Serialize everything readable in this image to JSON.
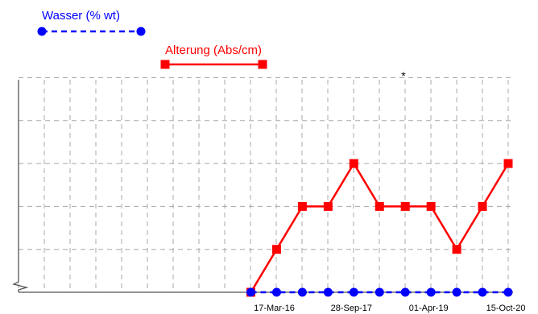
{
  "chart_data": {
    "type": "line",
    "title": "",
    "xlabel": "",
    "ylabel": "",
    "grid": true,
    "legend_placement": "top-left",
    "x_tick_labels": [
      "17-Mar-16",
      "28-Sep-17",
      "01-Apr-19",
      "15-Oct-20"
    ],
    "annotation": "*",
    "ylim": [
      0,
      5
    ],
    "series": [
      {
        "name": "Wasser (% wt)",
        "color": "#0000ff",
        "line_style": "dashed",
        "marker": "circle",
        "values": [
          0,
          0,
          0,
          0,
          0,
          0,
          0,
          0,
          0,
          0,
          0
        ]
      },
      {
        "name": "Alterung (Abs/cm)",
        "color": "#ff0000",
        "line_style": "solid",
        "marker": "square",
        "values": [
          0,
          1,
          2,
          2,
          3,
          2,
          2,
          2,
          1,
          2,
          3
        ]
      }
    ]
  }
}
